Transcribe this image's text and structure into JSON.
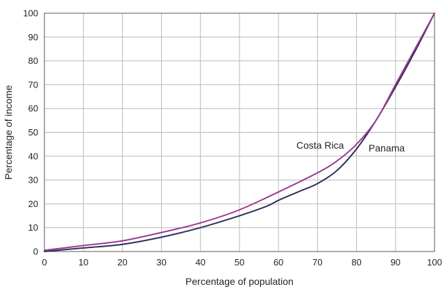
{
  "chart_data": {
    "type": "line",
    "xlabel": "Percentage of population",
    "ylabel": "Percentage of income",
    "xlim": [
      0,
      100
    ],
    "ylim": [
      0,
      100
    ],
    "x_ticks": [
      "0",
      "10",
      "20",
      "30",
      "40",
      "50",
      "60",
      "70",
      "80",
      "90",
      "100"
    ],
    "y_ticks": [
      "0",
      "10",
      "20",
      "30",
      "40",
      "50",
      "60",
      "70",
      "80",
      "90",
      "100"
    ],
    "grid": true,
    "series": [
      {
        "name": "Costa Rica",
        "color": "#9b3a93",
        "x": [
          0,
          10,
          20,
          30,
          40,
          50,
          60,
          70,
          75,
          80,
          85,
          90,
          95,
          100
        ],
        "y": [
          0.5,
          2.5,
          4.5,
          8,
          12,
          17.5,
          25,
          33,
          38,
          45,
          55,
          70,
          85,
          100
        ]
      },
      {
        "name": "Panama",
        "color": "#2e2f5c",
        "x": [
          0,
          10,
          20,
          30,
          40,
          50,
          57,
          60,
          65,
          70,
          75,
          80,
          85,
          90,
          95,
          100
        ],
        "y": [
          0,
          1.5,
          3,
          6,
          10,
          15,
          19,
          21.5,
          25,
          28.5,
          34,
          43,
          55,
          69,
          84,
          100
        ]
      }
    ]
  }
}
